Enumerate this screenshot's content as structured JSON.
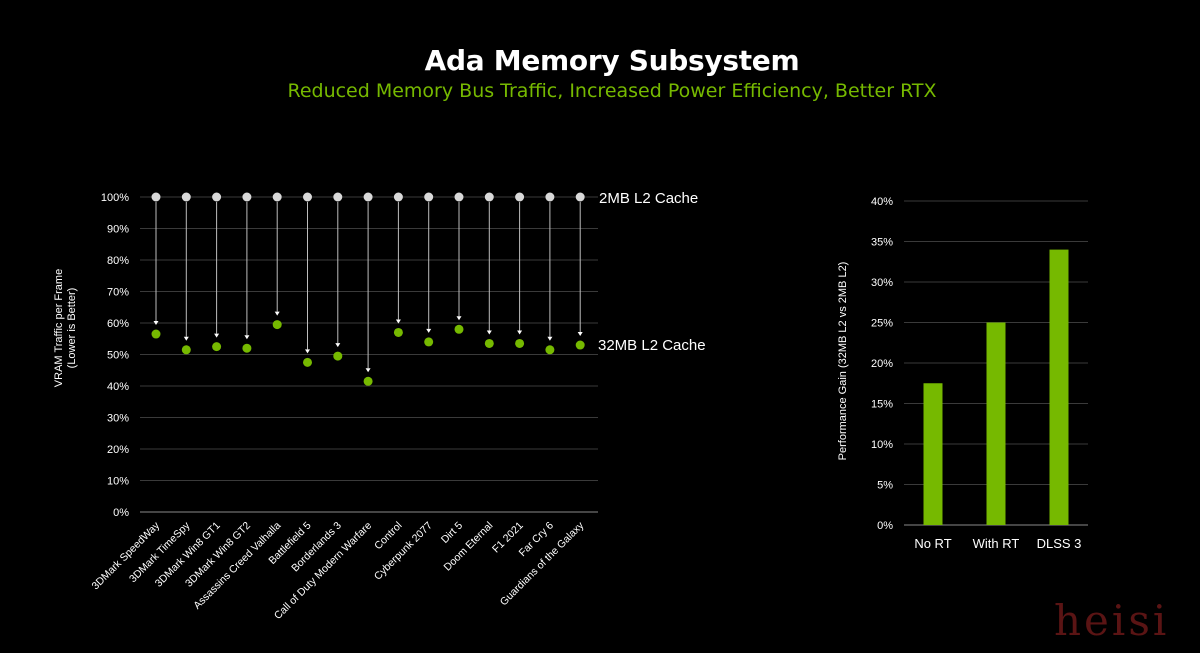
{
  "title": "Ada Memory Subsystem",
  "subtitle": "Reduced Memory Bus Traffic, Increased Power Efficiency, Better RTX",
  "watermark": "heisi",
  "colors": {
    "background": "#000000",
    "accent_green": "#76b900",
    "baseline_grey": "#d9d9d9",
    "gridline": "#3a3a3a",
    "axis_text": "#ffffff"
  },
  "chart_data": [
    {
      "type": "scatter",
      "ylabel": "VRAM Traffic per Frame",
      "ylabel_note": "(Lower is Better)",
      "yticks": [
        "0%",
        "10%",
        "20%",
        "30%",
        "40%",
        "50%",
        "60%",
        "70%",
        "80%",
        "90%",
        "100%"
      ],
      "ylim": [
        0,
        100
      ],
      "categories": [
        "3DMark SpeedWay",
        "3DMark TimeSpy",
        "3DMark Win8 GT1",
        "3DMark Win8 GT2",
        "Assassins Creed Valhalla",
        "Battlefield 5",
        "Borderlands 3",
        "Call of Duty Modern Warfare",
        "Control",
        "Cyberpunk 2077",
        "Dirt 5",
        "Doom Eternal",
        "F1 2021",
        "Far Cry 6",
        "Guardians of the Galaxy"
      ],
      "series": [
        {
          "name": "2MB L2 Cache",
          "color": "#d9d9d9",
          "values": [
            100,
            100,
            100,
            100,
            100,
            100,
            100,
            100,
            100,
            100,
            100,
            100,
            100,
            100,
            100
          ]
        },
        {
          "name": "32MB L2 Cache",
          "color": "#76b900",
          "values": [
            56.5,
            51.5,
            52.5,
            52,
            59.5,
            47.5,
            49.5,
            41.5,
            57,
            54,
            58,
            53.5,
            53.5,
            51.5,
            53
          ]
        }
      ],
      "grid": true
    },
    {
      "type": "bar",
      "ylabel": "Performance Gain (32MB L2 vs 2MB L2)",
      "yticks": [
        "0%",
        "5%",
        "10%",
        "15%",
        "20%",
        "25%",
        "30%",
        "35%",
        "40%"
      ],
      "ylim": [
        0,
        40
      ],
      "categories": [
        "No RT",
        "With RT",
        "DLSS 3"
      ],
      "values": [
        17.5,
        25,
        34
      ],
      "color": "#76b900",
      "grid": true
    }
  ]
}
